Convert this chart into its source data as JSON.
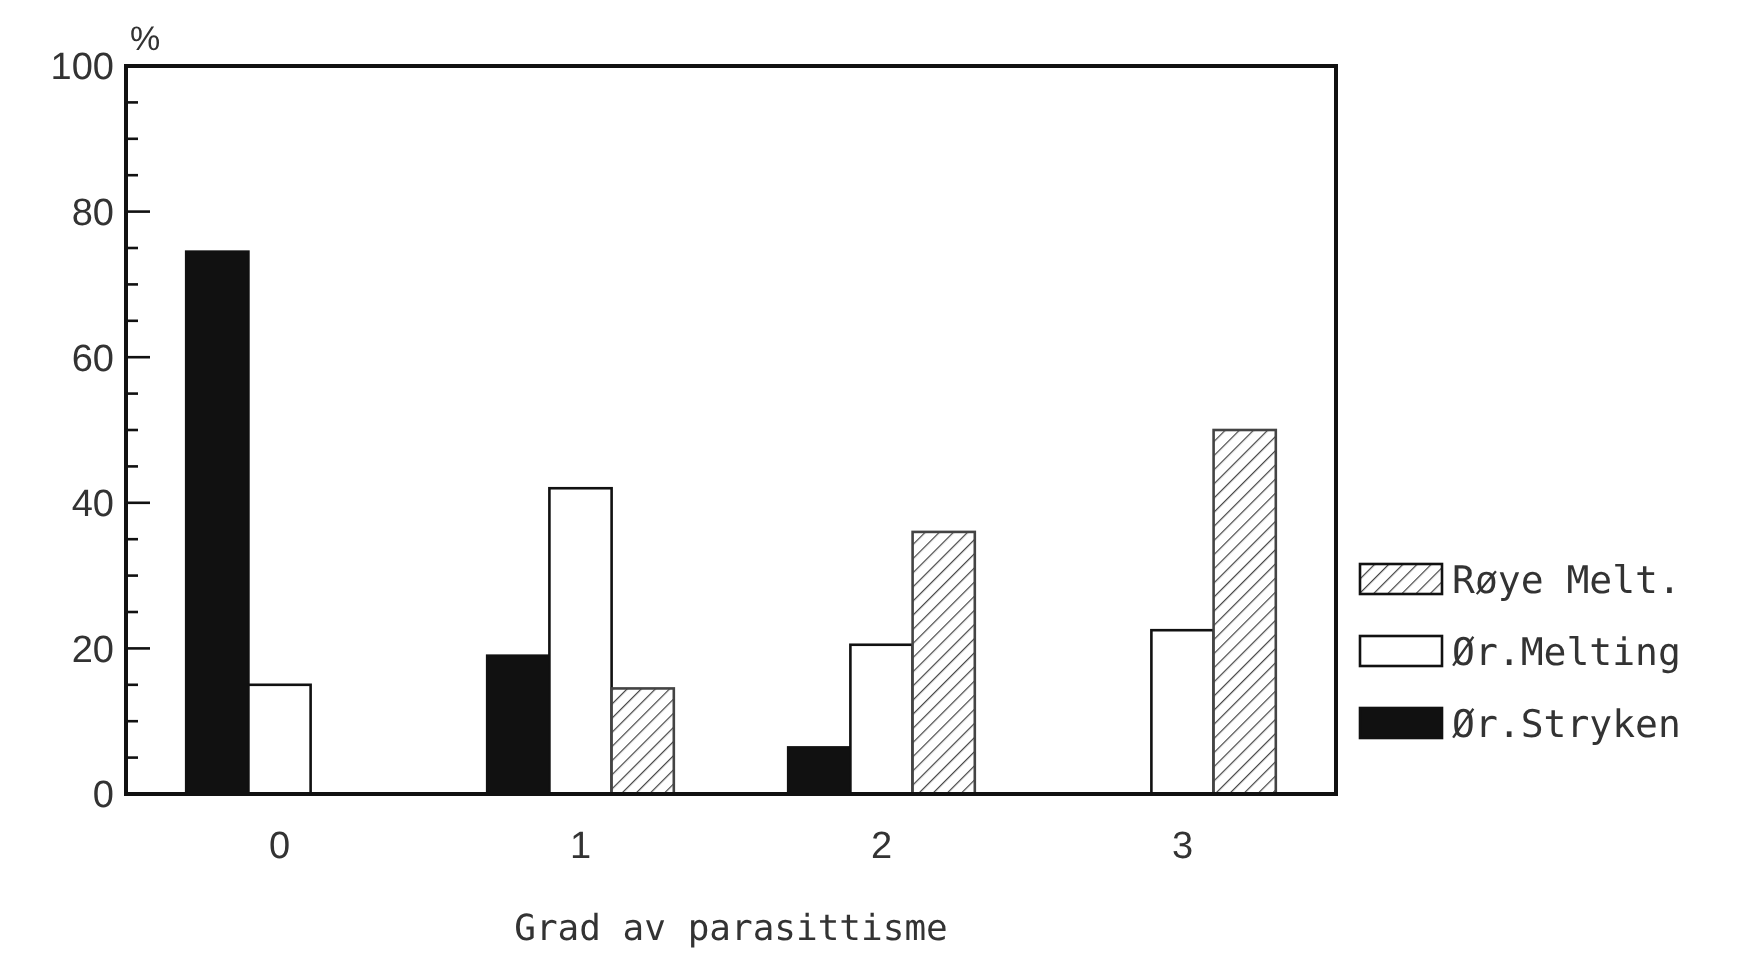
{
  "chart_data": {
    "type": "bar",
    "xlabel": "Grad av parasittisme",
    "ylabel": "%",
    "categories": [
      "0",
      "1",
      "2",
      "3"
    ],
    "series": [
      {
        "name": "Ør.Stryken",
        "color": "#111111",
        "values": [
          74.5,
          19,
          6.4,
          null
        ]
      },
      {
        "name": "Ør.Melting",
        "color": "#ffffff",
        "values": [
          15,
          42,
          20.5,
          22.5
        ]
      },
      {
        "name": "Røye Melt.",
        "color": "#444444",
        "values": [
          null,
          14.5,
          36,
          50
        ]
      }
    ],
    "ylim": [
      0,
      100
    ],
    "yticks": [
      0,
      {
        "value": 5,
        "label": null
      },
      {
        "value": 10,
        "label": null
      },
      {
        "value": 15,
        "label": null
      },
      20,
      {
        "value": 25,
        "label": null
      },
      {
        "value": 30,
        "label": null
      },
      {
        "value": 35,
        "label": null
      },
      40,
      {
        "value": 45,
        "label": null
      },
      {
        "value": 50,
        "label": null
      },
      {
        "value": 55,
        "label": null
      },
      60,
      {
        "value": 65,
        "label": null
      },
      {
        "value": 70,
        "label": null
      },
      {
        "value": 75,
        "label": null
      },
      80,
      {
        "value": 85,
        "label": null
      },
      {
        "value": 90,
        "label": null
      },
      {
        "value": 95,
        "label": null
      },
      100
    ],
    "grid": false,
    "legend": "right"
  }
}
